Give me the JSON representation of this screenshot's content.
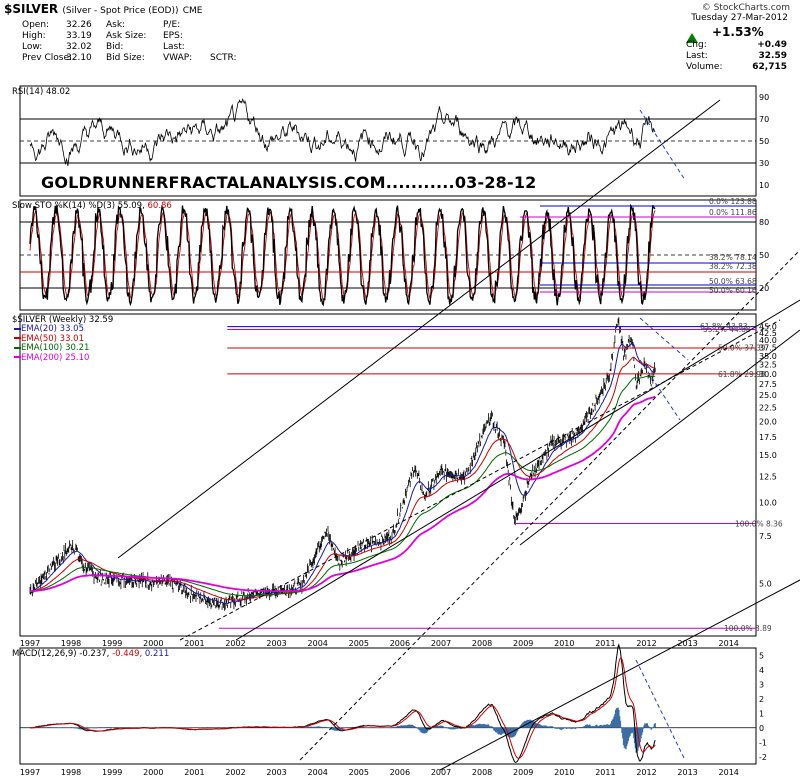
{
  "header": {
    "symbol": "$SILVER",
    "description": "(Silver - Spot Price (EOD))",
    "exchange": "CME",
    "credit": "© StockCharts.com",
    "date": "Tuesday 27-Mar-2012",
    "pct_change": "+1.53%",
    "chg_label": "Chg:",
    "chg_value": "+0.49",
    "last_label": "Last:",
    "last_value": "32.59",
    "volume_label": "Volume:",
    "volume_value": "62,715",
    "up_color": "#008000",
    "quotes": {
      "open_label": "Open:",
      "open": "32.26",
      "high_label": "High:",
      "high": "33.19",
      "low_label": "Low:",
      "low": "32.02",
      "prev_label": "Prev Close:",
      "prev": "32.10",
      "ask_label": "Ask:",
      "asksize_label": "Ask Size:",
      "bid_label": "Bid:",
      "bidsize_label": "Bid Size:",
      "pe_label": "P/E:",
      "eps_label": "EPS:",
      "high2_label": "High:",
      "last2_label": "Last:",
      "vwap_label": "VWAP:",
      "sctr_label": "SCTR:"
    }
  },
  "annotation": "GOLDRUNNERFRACTALANALYSIS.COM...........03-28-12",
  "chart_data": [
    {
      "type": "line",
      "title": "RSI(14) 48.02",
      "y_ticks": [
        "90",
        "70",
        "50",
        "30",
        "10"
      ],
      "levels": [
        70,
        50,
        30
      ],
      "ylim": [
        0,
        100
      ]
    },
    {
      "type": "line",
      "title": "Slow STO %K(14) %D(3) 55.09, 60.86",
      "title_k": "Slow STO %K(14) %D(3) 55.09,",
      "title_d": "60.86",
      "y_ticks": [
        "80",
        "50",
        "20"
      ],
      "fib_labels": [
        "0.0% 123.88",
        "0.0% 111.86",
        "38.2% 78.14",
        "38.2% 72.38",
        "50.0% 63.68",
        "50.0% 60.16"
      ],
      "ylim": [
        0,
        100
      ]
    },
    {
      "type": "line",
      "title": "$SILVER (Weekly) 32.59",
      "legend": [
        {
          "name": "EMA(20) 33.05",
          "color": "#1a1aa0"
        },
        {
          "name": "EMA(50) 33.01",
          "color": "#cc0000"
        },
        {
          "name": "EMA(100) 30.21",
          "color": "#006600"
        },
        {
          "name": "EMA(200) 25.10",
          "color": "#e000e0"
        }
      ],
      "y_scale": "log",
      "y_ticks": [
        "45.0",
        "42.5",
        "40.0",
        "37.5",
        "35.0",
        "32.5",
        "30.0",
        "27.5",
        "25.0",
        "22.5",
        "20.0",
        "17.5",
        "15.0",
        "12.5",
        "10.0",
        "7.5",
        "5.0"
      ],
      "fib_labels": [
        "61.8% 43.83",
        "55.2% 44.88",
        "50.0% 37.39",
        "61.8% 29.98",
        "100.0% 8.36",
        "100.0% 3.89"
      ],
      "x_ticks": [
        "1997",
        "1998",
        "1999",
        "2000",
        "2001",
        "2002",
        "2003",
        "2004",
        "2005",
        "2006",
        "2007",
        "2008",
        "2009",
        "2010",
        "2011",
        "2012",
        "2013",
        "2014"
      ],
      "key_points": [
        {
          "x": "1997",
          "y": 4.7
        },
        {
          "x": "1998",
          "y": 7.0
        },
        {
          "x": "2001",
          "y": 4.2
        },
        {
          "x": "2004",
          "y": 8.0
        },
        {
          "x": "2006",
          "y": 13.5
        },
        {
          "x": "2008",
          "y": 20.8
        },
        {
          "x": "2008-10",
          "y": 8.4
        },
        {
          "x": "2011-04",
          "y": 48.5
        },
        {
          "x": "2011-09",
          "y": 27.0
        },
        {
          "x": "2012-03",
          "y": 32.59
        }
      ]
    },
    {
      "type": "line",
      "title": "MACD(12,26,9) -0.237, -0.449, 0.211",
      "title_a": "MACD(12,26,9) -0.237,",
      "title_b": "-0.449,",
      "title_c": "0.211",
      "y_ticks": [
        "5",
        "4",
        "3",
        "2",
        "1",
        "0",
        "-1",
        "-2"
      ],
      "x_ticks": [
        "1997",
        "1998",
        "1999",
        "2000",
        "2001",
        "2002",
        "2003",
        "2004",
        "2005",
        "2006",
        "2007",
        "2008",
        "2009",
        "2010",
        "2011",
        "2012",
        "2013",
        "2014"
      ]
    }
  ]
}
